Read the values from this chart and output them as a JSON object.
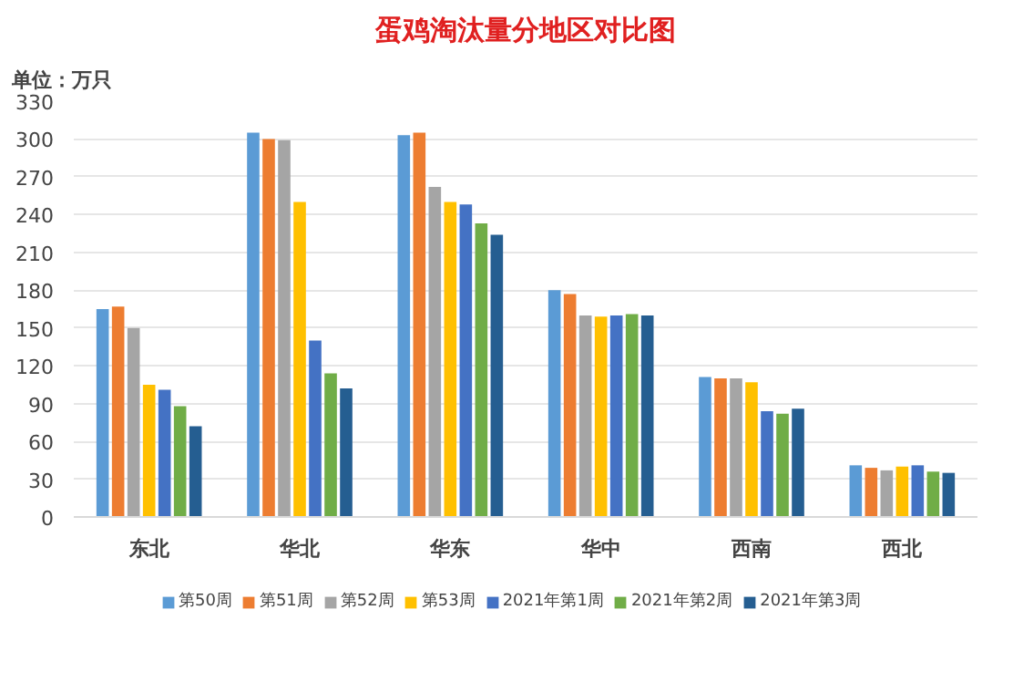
{
  "chart_data": {
    "type": "bar",
    "title": "蛋鸡淘汰量分地区对比图",
    "annotations": [
      "单位：万只"
    ],
    "categories": [
      "东北",
      "华北",
      "华东",
      "华中",
      "西南",
      "西北"
    ],
    "series": [
      {
        "name": "第50周",
        "color": "#5b9bd5",
        "values": [
          165,
          305,
          303,
          180,
          111,
          41
        ]
      },
      {
        "name": "第51周",
        "color": "#ed7d31",
        "values": [
          167,
          300,
          305,
          177,
          110,
          39
        ]
      },
      {
        "name": "第52周",
        "color": "#a5a5a5",
        "values": [
          150,
          299,
          262,
          160,
          110,
          37
        ]
      },
      {
        "name": "第53周",
        "color": "#ffc000",
        "values": [
          105,
          250,
          250,
          159,
          107,
          40
        ]
      },
      {
        "name": "2021年第1周",
        "color": "#4472c4",
        "values": [
          101,
          140,
          248,
          160,
          84,
          41
        ]
      },
      {
        "name": "2021年第2周",
        "color": "#70ad47",
        "values": [
          88,
          114,
          233,
          161,
          82,
          36
        ]
      },
      {
        "name": "2021年第3周",
        "color": "#255e91",
        "values": [
          72,
          102,
          224,
          160,
          86,
          35
        ]
      }
    ],
    "ylim": [
      0,
      330
    ],
    "yticks": [
      0,
      30,
      60,
      90,
      120,
      150,
      180,
      210,
      240,
      270,
      300,
      330
    ],
    "grid": "y",
    "legend": "bottom"
  }
}
